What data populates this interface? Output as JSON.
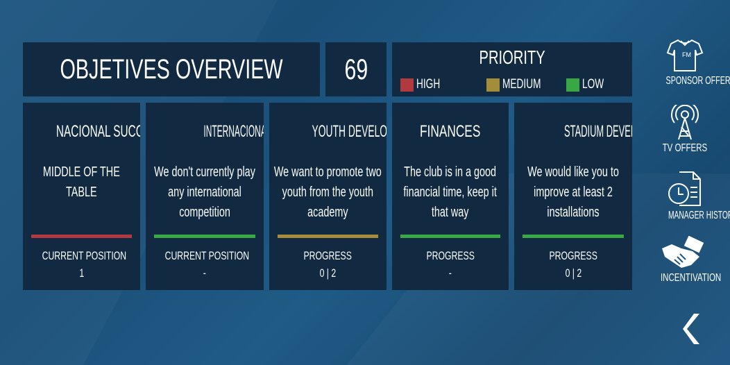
{
  "header": {
    "title": "OBJETIVES OVERVIEW",
    "score": "69"
  },
  "priority": {
    "title": "PRIORITY",
    "levels": [
      {
        "label": "HIGH",
        "color": "#b23a3e"
      },
      {
        "label": "MEDIUM",
        "color": "#a38c3a"
      },
      {
        "label": "LOW",
        "color": "#3aa745"
      }
    ]
  },
  "objectives": [
    {
      "title": "NACIONAL SUCCESS",
      "description": "MIDDLE OF THE TABLE",
      "priority_color": "#b23a3e",
      "metric_label": "CURRENT POSITION",
      "metric_value": "1"
    },
    {
      "title": "INTERNACIONAL SUCCESS",
      "description": "We don't currently play any international competition",
      "priority_color": "#3aa745",
      "metric_label": "CURRENT POSITION",
      "metric_value": "-"
    },
    {
      "title": "YOUTH DEVELOPMENT",
      "description": "We want to promote two youth from the youth academy",
      "priority_color": "#a38c3a",
      "metric_label": "PROGRESS",
      "metric_value": "0 | 2"
    },
    {
      "title": "FINANCES",
      "description": "The club is in a good financial time, keep it that way",
      "priority_color": "#3aa745",
      "metric_label": "PROGRESS",
      "metric_value": "-"
    },
    {
      "title": "STADIUM DEVELOPMENT",
      "description": "We would like you to improve at least 2 installations",
      "priority_color": "#3aa745",
      "metric_label": "PROGRESS",
      "metric_value": "0 | 2"
    }
  ],
  "sidebar": [
    {
      "label": "SPONSOR OFFERS",
      "icon": "shirt-icon"
    },
    {
      "label": "TV OFFERS",
      "icon": "radio-tower-icon"
    },
    {
      "label": "MANAGER HISTORY",
      "icon": "document-clock-icon"
    },
    {
      "label": "INCENTIVATION",
      "icon": "handshake-money-icon"
    }
  ],
  "shirt_logo": "FM",
  "back_icon": "chevron-left-icon"
}
